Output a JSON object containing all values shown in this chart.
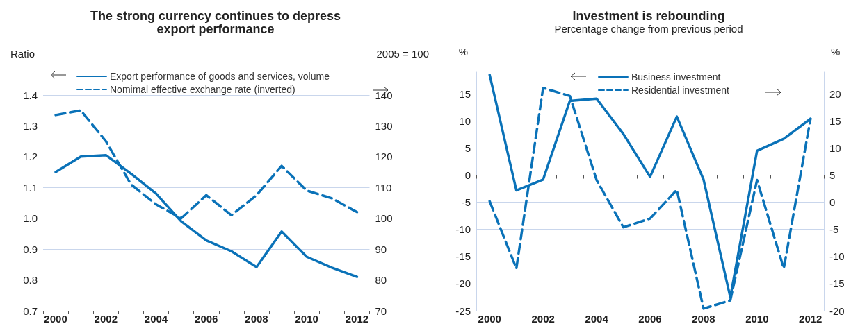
{
  "chart_data": [
    {
      "type": "line",
      "title": "The strong currency continues to depress\nexport performance",
      "ylabel": "Ratio",
      "y2label": "2005 = 100",
      "categories": [
        "2000",
        null,
        "2002",
        null,
        "2004",
        null,
        "2006",
        null,
        "2008",
        null,
        "2010",
        null,
        "2012"
      ],
      "series": [
        {
          "name": "Export performance of goods and services, volume",
          "color": "#0a72b8",
          "line_style": "solid",
          "values": [
            1.15,
            1.2,
            1.205,
            1.145,
            1.08,
            0.99,
            0.928,
            0.893,
            0.842,
            0.957,
            0.875,
            0.84,
            0.81
          ]
        },
        {
          "name": "Nomimal effective exchange rate (inverted)",
          "color": "#0a72b8",
          "line_style": "dashed",
          "axis": "y2",
          "values": [
            133.5,
            135,
            125,
            111,
            104.5,
            100,
            107.5,
            101,
            107.5,
            117,
            109,
            106.5,
            102
          ]
        }
      ],
      "ylim": [
        0.7,
        1.4
      ],
      "yticks": [
        0.7,
        0.8,
        0.9,
        {
          "value": 1,
          "label": "1.0"
        },
        1.1,
        1.2,
        1.3,
        1.4
      ],
      "y2lim": [
        70,
        140
      ],
      "y2ticks": [
        70,
        80,
        90,
        100,
        110,
        120,
        130,
        140
      ],
      "grid": "y",
      "legend": "top left",
      "marker": "none"
    },
    {
      "type": "line",
      "title": "Investment is rebounding",
      "subtitle": "Percentage change from previous period",
      "ylabel": "%",
      "y2label": "%",
      "categories": [
        "2000",
        null,
        "2002",
        null,
        "2004",
        null,
        "2006",
        null,
        "2008",
        null,
        "2010",
        null,
        "2012"
      ],
      "series": [
        {
          "name": "Business investment",
          "color": "#0a72b8",
          "line_style": "solid",
          "values": [
            18.5,
            -2.8,
            -0.8,
            13.7,
            14.1,
            7.6,
            -0.3,
            10.8,
            -0.8,
            -22.5,
            4.5,
            6.7,
            10.4
          ]
        },
        {
          "name": "Residential investment",
          "color": "#0a72b8",
          "line_style": "dashed",
          "axis": "y2",
          "values": [
            0.2,
            -12.2,
            21.1,
            19.6,
            4.1,
            -4.6,
            -3.0,
            2.3,
            -19.6,
            -18.1,
            4.1,
            -12.2,
            15.4
          ]
        }
      ],
      "ylim": [
        -25,
        19
      ],
      "yticks": [
        -25,
        -20,
        -15,
        -10,
        -5,
        0,
        5,
        10,
        15
      ],
      "y2lim": [
        -20,
        24
      ],
      "y2ticks": [
        -20,
        -15,
        -10,
        -5,
        0,
        5,
        10,
        15,
        20
      ],
      "grid": "y",
      "legend": "top",
      "marker": "none",
      "ref_lines": [
        {
          "axis": "y",
          "value": 0,
          "color": "#555555"
        }
      ]
    }
  ]
}
